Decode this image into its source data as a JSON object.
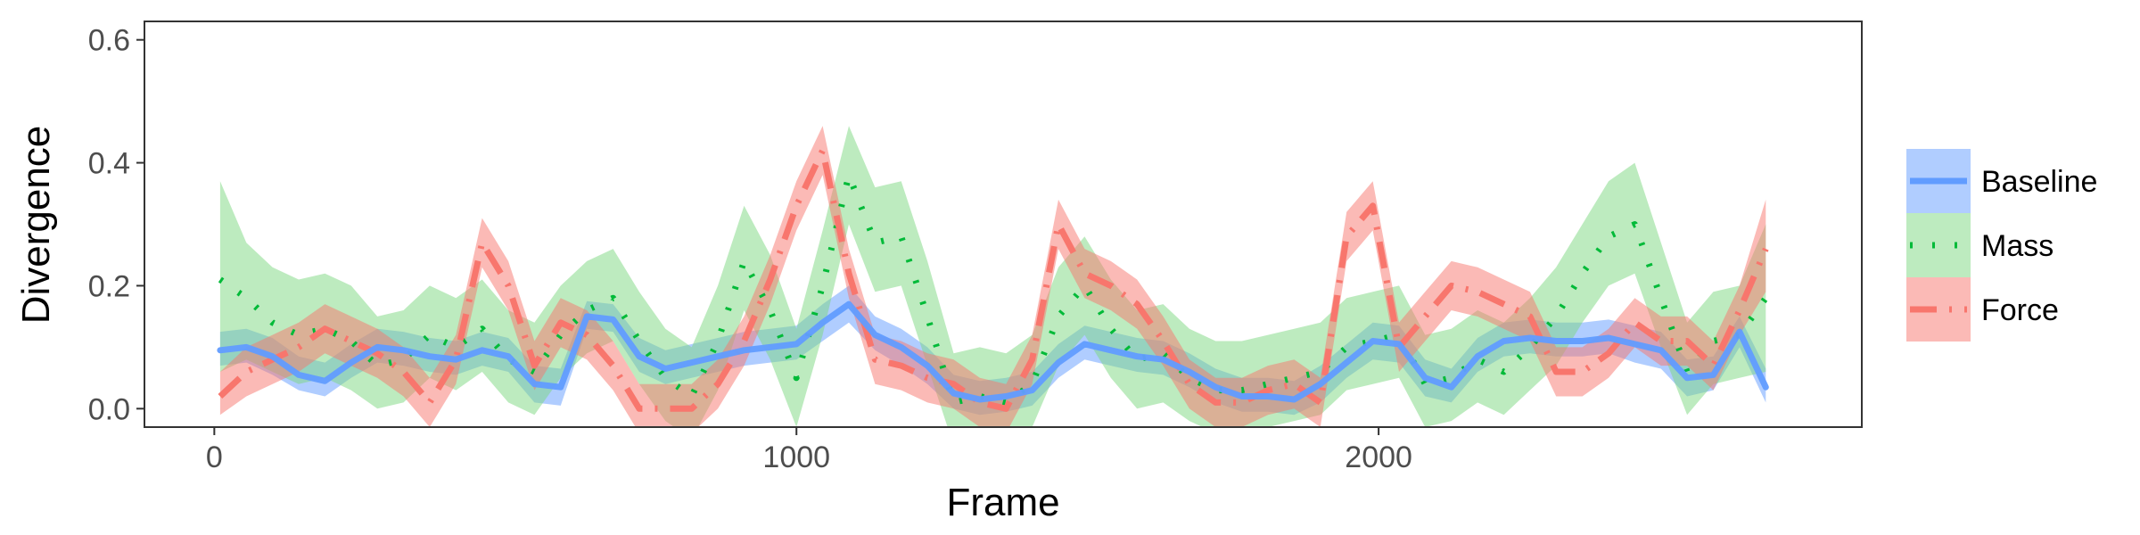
{
  "chart_data": {
    "type": "line",
    "xlabel": "Frame",
    "ylabel": "Divergence",
    "xlim": [
      -120,
      2830
    ],
    "ylim": [
      -0.03,
      0.63
    ],
    "x_ticks": [
      0,
      1000,
      2000
    ],
    "x_tick_labels": [
      "0",
      "1000",
      "2000"
    ],
    "y_ticks": [
      0.0,
      0.2,
      0.4,
      0.6
    ],
    "y_tick_labels": [
      "0.0",
      "0.2",
      "0.4",
      "0.6"
    ],
    "grid": false,
    "legend_position": "right",
    "x": [
      10,
      55,
      100,
      145,
      190,
      235,
      280,
      325,
      370,
      415,
      460,
      505,
      550,
      595,
      640,
      685,
      730,
      775,
      820,
      865,
      910,
      955,
      1000,
      1045,
      1090,
      1135,
      1180,
      1225,
      1270,
      1315,
      1360,
      1405,
      1450,
      1495,
      1540,
      1585,
      1630,
      1675,
      1720,
      1765,
      1810,
      1855,
      1900,
      1945,
      1990,
      2035,
      2080,
      2125,
      2170,
      2215,
      2260,
      2305,
      2350,
      2395,
      2440,
      2485,
      2530,
      2575,
      2620,
      2665
    ],
    "series": [
      {
        "name": "Baseline",
        "color": "#619CFF",
        "band_color": "#619CFF",
        "line_style": "solid",
        "values": [
          0.095,
          0.1,
          0.085,
          0.055,
          0.045,
          0.075,
          0.1,
          0.095,
          0.085,
          0.08,
          0.095,
          0.085,
          0.04,
          0.035,
          0.15,
          0.145,
          0.085,
          0.065,
          0.075,
          0.085,
          0.095,
          0.1,
          0.105,
          0.14,
          0.17,
          0.12,
          0.1,
          0.07,
          0.025,
          0.015,
          0.02,
          0.03,
          0.075,
          0.105,
          0.095,
          0.085,
          0.08,
          0.06,
          0.035,
          0.02,
          0.02,
          0.015,
          0.04,
          0.075,
          0.11,
          0.105,
          0.05,
          0.035,
          0.085,
          0.11,
          0.115,
          0.11,
          0.11,
          0.115,
          0.105,
          0.095,
          0.05,
          0.055,
          0.125,
          0.035
        ],
        "lower": [
          0.07,
          0.075,
          0.055,
          0.03,
          0.02,
          0.05,
          0.075,
          0.07,
          0.06,
          0.055,
          0.07,
          0.06,
          0.01,
          0.005,
          0.13,
          0.125,
          0.06,
          0.04,
          0.05,
          0.06,
          0.07,
          0.075,
          0.08,
          0.11,
          0.14,
          0.095,
          0.07,
          0.04,
          0.0,
          -0.01,
          -0.005,
          0.005,
          0.05,
          0.08,
          0.07,
          0.06,
          0.055,
          0.035,
          0.01,
          -0.005,
          -0.005,
          -0.01,
          0.01,
          0.05,
          0.08,
          0.075,
          0.02,
          0.01,
          0.06,
          0.085,
          0.09,
          0.085,
          0.085,
          0.09,
          0.075,
          0.065,
          0.02,
          0.03,
          0.1,
          0.01
        ],
        "upper": [
          0.125,
          0.13,
          0.115,
          0.085,
          0.075,
          0.105,
          0.13,
          0.125,
          0.115,
          0.11,
          0.125,
          0.115,
          0.07,
          0.065,
          0.175,
          0.17,
          0.115,
          0.095,
          0.105,
          0.115,
          0.125,
          0.13,
          0.135,
          0.17,
          0.2,
          0.15,
          0.13,
          0.1,
          0.055,
          0.045,
          0.05,
          0.06,
          0.105,
          0.135,
          0.125,
          0.115,
          0.11,
          0.09,
          0.065,
          0.05,
          0.05,
          0.045,
          0.07,
          0.105,
          0.14,
          0.135,
          0.08,
          0.065,
          0.115,
          0.14,
          0.145,
          0.14,
          0.14,
          0.145,
          0.135,
          0.125,
          0.08,
          0.085,
          0.15,
          0.065
        ]
      },
      {
        "name": "Mass",
        "color": "#00BA38",
        "band_color": "#7CD87F",
        "line_style": "dotted",
        "values": [
          0.21,
          0.18,
          0.14,
          0.12,
          0.13,
          0.11,
          0.07,
          0.08,
          0.12,
          0.1,
          0.13,
          0.08,
          0.06,
          0.12,
          0.16,
          0.18,
          0.11,
          0.05,
          0.02,
          0.11,
          0.24,
          0.16,
          0.05,
          0.2,
          0.38,
          0.27,
          0.28,
          0.15,
          0.01,
          0.02,
          0.01,
          0.04,
          0.15,
          0.2,
          0.13,
          0.08,
          0.09,
          0.05,
          0.03,
          0.03,
          0.04,
          0.05,
          0.06,
          0.1,
          0.11,
          0.12,
          0.04,
          0.05,
          0.08,
          0.06,
          0.1,
          0.15,
          0.22,
          0.28,
          0.3,
          0.18,
          0.06,
          0.11,
          0.12,
          0.18
        ],
        "lower": [
          0.06,
          0.08,
          0.06,
          0.04,
          0.05,
          0.03,
          0.0,
          0.01,
          0.05,
          0.03,
          0.06,
          0.01,
          -0.01,
          0.05,
          0.09,
          0.11,
          0.04,
          -0.02,
          -0.05,
          0.03,
          0.16,
          0.08,
          -0.03,
          0.12,
          0.3,
          0.19,
          0.2,
          0.07,
          -0.06,
          -0.05,
          -0.06,
          -0.03,
          0.07,
          0.12,
          0.05,
          0.0,
          0.01,
          -0.02,
          -0.04,
          -0.04,
          -0.03,
          -0.02,
          -0.01,
          0.03,
          0.04,
          0.05,
          -0.03,
          -0.02,
          0.01,
          -0.01,
          0.03,
          0.07,
          0.14,
          0.2,
          0.22,
          0.1,
          -0.01,
          0.04,
          0.05,
          0.06
        ],
        "upper": [
          0.37,
          0.27,
          0.23,
          0.21,
          0.22,
          0.2,
          0.15,
          0.16,
          0.2,
          0.18,
          0.21,
          0.16,
          0.14,
          0.2,
          0.24,
          0.26,
          0.19,
          0.13,
          0.1,
          0.2,
          0.33,
          0.25,
          0.13,
          0.29,
          0.46,
          0.36,
          0.37,
          0.24,
          0.09,
          0.1,
          0.09,
          0.12,
          0.23,
          0.28,
          0.21,
          0.16,
          0.17,
          0.13,
          0.11,
          0.11,
          0.12,
          0.13,
          0.14,
          0.18,
          0.19,
          0.2,
          0.12,
          0.13,
          0.16,
          0.14,
          0.18,
          0.23,
          0.3,
          0.37,
          0.4,
          0.27,
          0.14,
          0.19,
          0.2,
          0.3
        ]
      },
      {
        "name": "Force",
        "color": "#F8766D",
        "band_color": "#F8766D",
        "line_style": "dashdot",
        "values": [
          0.02,
          0.06,
          0.08,
          0.1,
          0.13,
          0.11,
          0.09,
          0.06,
          0.01,
          0.08,
          0.27,
          0.2,
          0.07,
          0.14,
          0.12,
          0.07,
          0.0,
          0.0,
          0.0,
          0.04,
          0.11,
          0.21,
          0.33,
          0.42,
          0.22,
          0.08,
          0.07,
          0.05,
          0.04,
          0.01,
          0.0,
          0.08,
          0.3,
          0.22,
          0.2,
          0.17,
          0.11,
          0.04,
          0.01,
          0.01,
          0.03,
          0.04,
          0.01,
          0.28,
          0.33,
          0.1,
          0.15,
          0.2,
          0.19,
          0.17,
          0.15,
          0.06,
          0.06,
          0.09,
          0.14,
          0.11,
          0.11,
          0.07,
          0.16,
          0.26
        ],
        "lower": [
          -0.01,
          0.02,
          0.04,
          0.06,
          0.09,
          0.07,
          0.05,
          0.02,
          -0.03,
          0.04,
          0.23,
          0.16,
          0.03,
          0.1,
          0.08,
          0.03,
          -0.04,
          -0.04,
          -0.04,
          0.0,
          0.07,
          0.17,
          0.29,
          0.38,
          0.18,
          0.04,
          0.03,
          0.01,
          0.0,
          -0.03,
          -0.04,
          0.04,
          0.26,
          0.18,
          0.16,
          0.13,
          0.07,
          0.0,
          -0.03,
          -0.03,
          -0.01,
          0.0,
          -0.03,
          0.24,
          0.29,
          0.06,
          0.11,
          0.16,
          0.15,
          0.13,
          0.11,
          0.02,
          0.02,
          0.05,
          0.1,
          0.07,
          0.07,
          0.03,
          0.12,
          0.19
        ],
        "upper": [
          0.06,
          0.1,
          0.12,
          0.14,
          0.17,
          0.15,
          0.13,
          0.1,
          0.05,
          0.12,
          0.31,
          0.24,
          0.11,
          0.18,
          0.16,
          0.11,
          0.04,
          0.04,
          0.04,
          0.08,
          0.15,
          0.25,
          0.37,
          0.46,
          0.26,
          0.12,
          0.11,
          0.09,
          0.08,
          0.05,
          0.04,
          0.12,
          0.34,
          0.26,
          0.24,
          0.21,
          0.15,
          0.08,
          0.05,
          0.05,
          0.07,
          0.08,
          0.05,
          0.32,
          0.37,
          0.14,
          0.19,
          0.24,
          0.23,
          0.21,
          0.19,
          0.1,
          0.1,
          0.13,
          0.18,
          0.15,
          0.15,
          0.11,
          0.2,
          0.34
        ]
      }
    ]
  }
}
